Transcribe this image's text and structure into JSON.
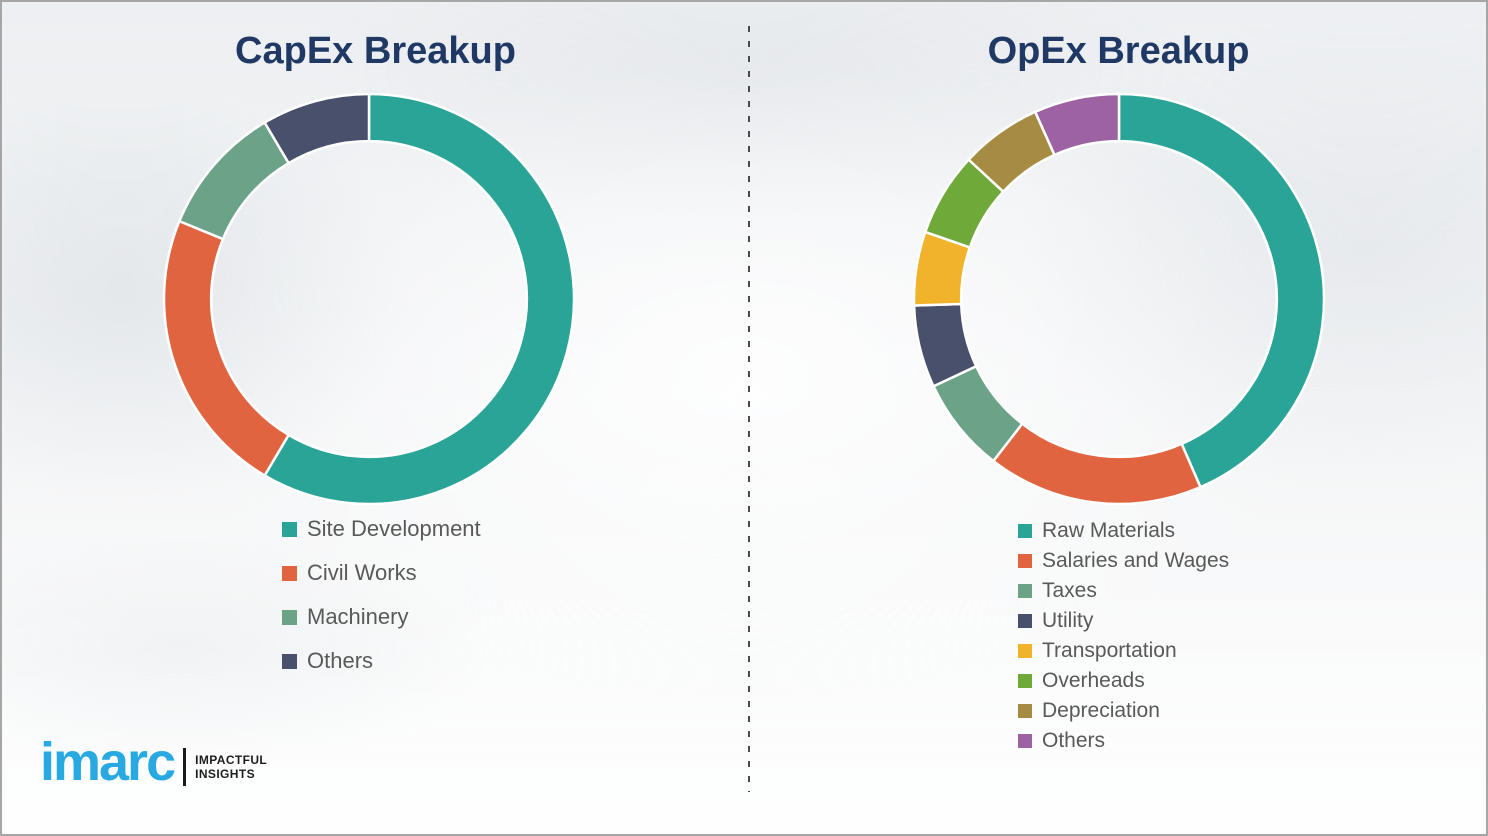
{
  "chart_data": [
    {
      "type": "pie",
      "subtype": "donut",
      "title": "CapEx Breakup",
      "labels": [
        "Site Development",
        "Civil Works",
        "Machinery",
        "Others"
      ],
      "values": [
        58.5,
        22.7,
        10.3,
        8.5
      ],
      "values_unit": "percent-estimated-from-arc-angles",
      "colors": [
        "#2aa496",
        "#e0643f",
        "#6ca287",
        "#49506b"
      ],
      "start_angle_deg": 0,
      "direction": "clockwise",
      "inner_radius_ratio": 0.77,
      "segment_gap_color": "#ffffff",
      "legend_position": "below-chart-left"
    },
    {
      "type": "pie",
      "subtype": "donut",
      "title": "OpEx Breakup",
      "labels": [
        "Raw Materials",
        "Salaries and Wages",
        "Taxes",
        "Utility",
        "Transportation",
        "Overheads",
        "Depreciation",
        "Others"
      ],
      "values": [
        43.5,
        17.0,
        7.5,
        6.5,
        5.8,
        6.6,
        6.4,
        6.7
      ],
      "values_unit": "percent-estimated-from-arc-angles",
      "colors": [
        "#2aa496",
        "#e0643f",
        "#6ca287",
        "#49506b",
        "#f2b32c",
        "#6fa93a",
        "#a68c42",
        "#9d62a2"
      ],
      "start_angle_deg": 0,
      "direction": "clockwise",
      "inner_radius_ratio": 0.77,
      "segment_gap_color": "#ffffff",
      "legend_position": "below-chart-left"
    }
  ],
  "logo": {
    "brand": "imarc",
    "tagline_line1": "IMPACTFUL",
    "tagline_line2": "INSIGHTS"
  },
  "style": {
    "title_color": "#1f3864",
    "legend_text_color": "#595959",
    "divider_color": "#4a4a4a",
    "frame_border_color": "#a6a6a6",
    "background_color": "#f4f5f6",
    "brand_blue": "#29a9e1"
  }
}
